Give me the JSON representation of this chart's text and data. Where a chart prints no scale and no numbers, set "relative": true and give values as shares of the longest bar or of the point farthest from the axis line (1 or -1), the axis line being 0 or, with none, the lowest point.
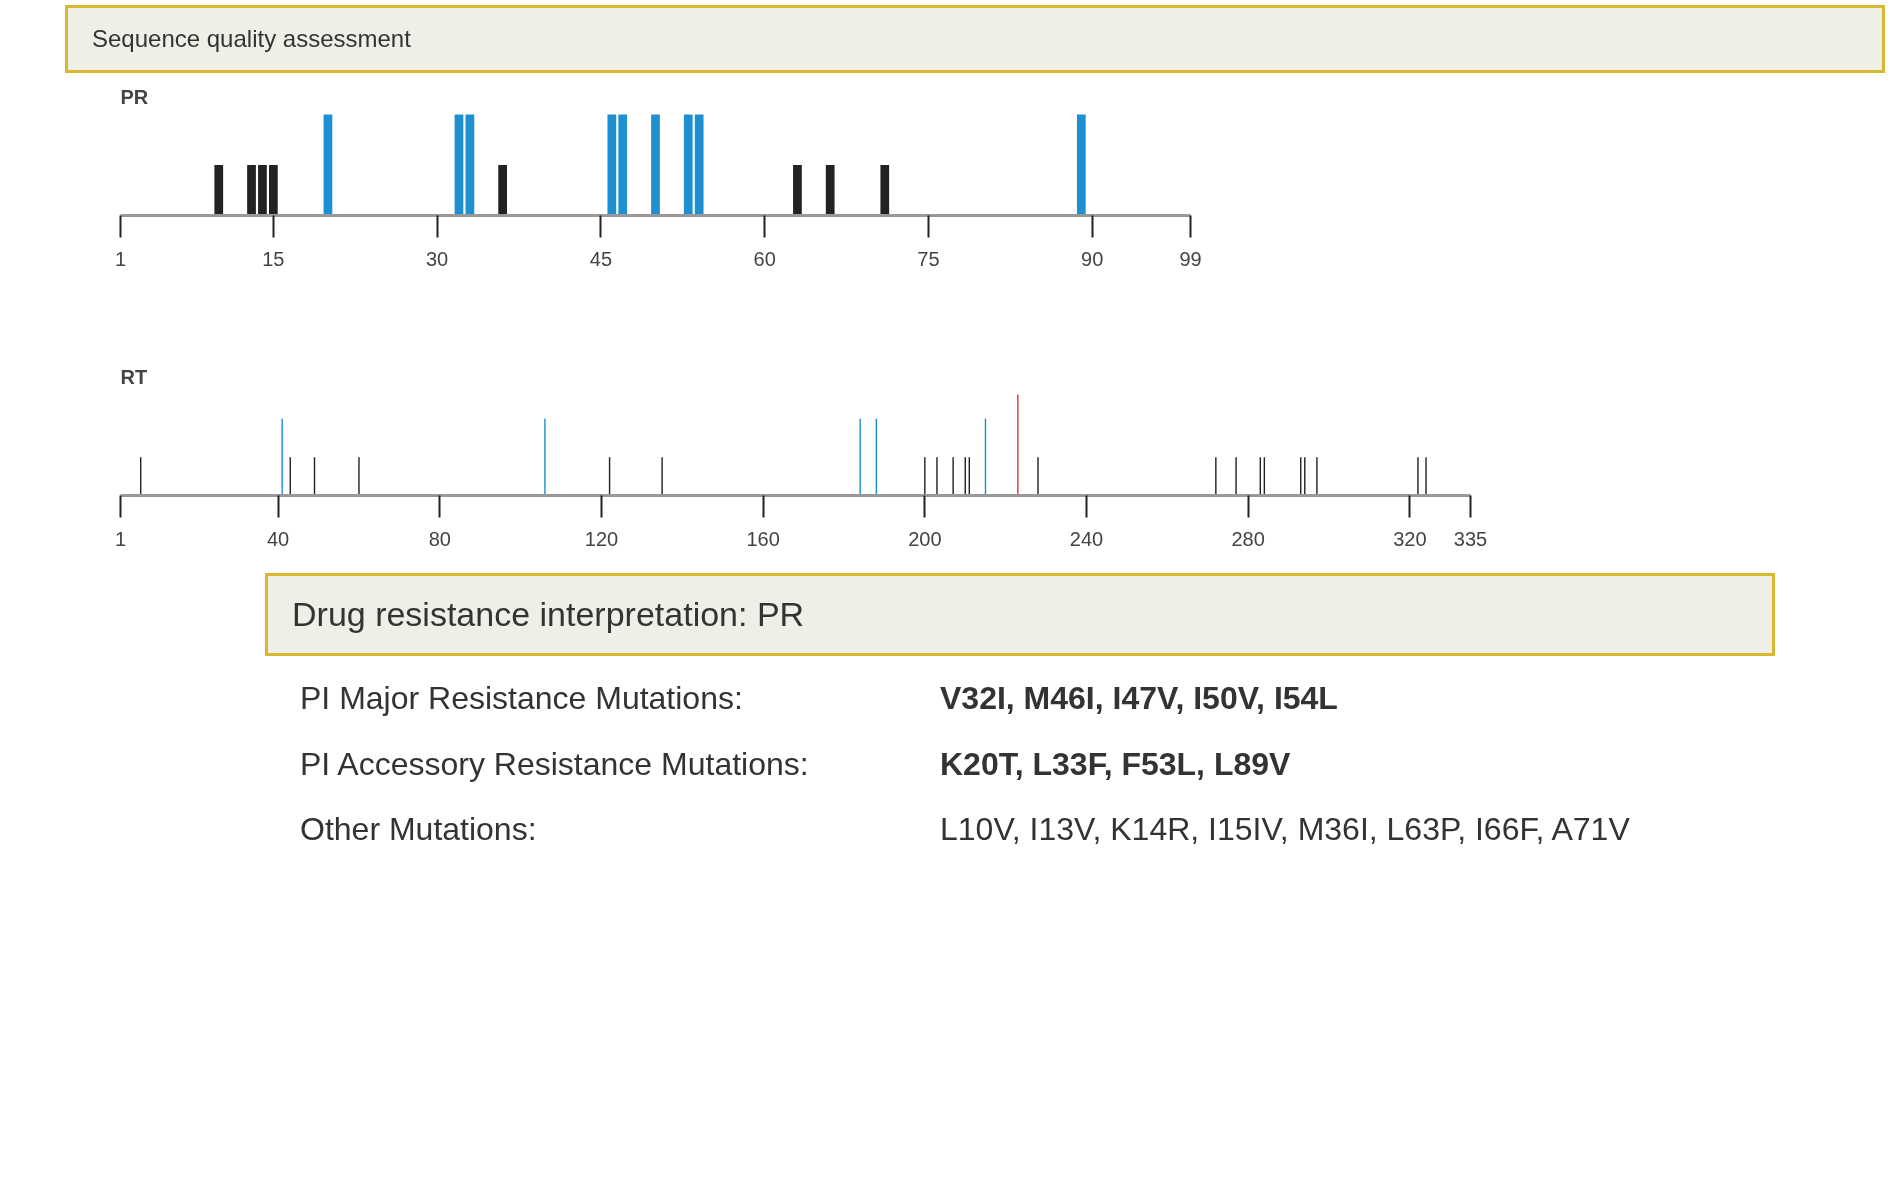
{
  "chart_data": [
    {
      "type": "bar",
      "title": "PR",
      "annotations": [
        "Sequence quality assessment"
      ],
      "relative": true,
      "grid": false,
      "xlim": [
        1,
        99
      ],
      "xticks": [
        1,
        15,
        30,
        45,
        60,
        75,
        90,
        99
      ],
      "x": [
        10,
        13,
        14,
        15,
        20,
        32,
        33,
        36,
        46,
        47,
        50,
        53,
        54,
        63,
        66,
        71,
        89
      ],
      "values": [
        0.5,
        0.5,
        0.5,
        0.5,
        1,
        1,
        1,
        0.5,
        1,
        1,
        1,
        1,
        1,
        0.5,
        0.5,
        0.5,
        1
      ],
      "colors": [
        "#222222",
        "#222222",
        "#222222",
        "#222222",
        "#1e8fd0",
        "#1e8fd0",
        "#1e8fd0",
        "#222222",
        "#1e8fd0",
        "#1e8fd0",
        "#1e8fd0",
        "#1e8fd0",
        "#1e8fd0",
        "#222222",
        "#222222",
        "#222222",
        "#1e8fd0"
      ]
    },
    {
      "type": "bar",
      "title": "RT",
      "annotations": [
        "Drug resistance interpretation: PR",
        "PI Major Resistance Mutations:",
        "V32I, M46I, I47V, I50V, I54L",
        "PI Accessory Resistance Mutations:",
        "K20T, L33F, F53L, L89V",
        "Other Mutations:",
        "L10V, I13V, K14R, I15IV, M36I, L63P, I66F, A71V"
      ],
      "relative": true,
      "grid": false,
      "xlim": [
        1,
        335
      ],
      "xticks": [
        1,
        40,
        80,
        120,
        160,
        200,
        240,
        280,
        320,
        335
      ],
      "x": [
        6,
        41,
        43,
        49,
        60,
        106,
        122,
        135,
        184,
        188,
        200,
        203,
        207,
        210,
        211,
        215,
        223,
        228,
        272,
        277,
        283,
        284,
        293,
        294,
        297,
        322,
        324
      ],
      "values": [
        0.38,
        0.76,
        0.38,
        0.38,
        0.38,
        0.76,
        0.38,
        0.38,
        0.76,
        0.76,
        0.38,
        0.38,
        0.38,
        0.38,
        0.38,
        0.76,
        1,
        0.38,
        0.38,
        0.38,
        0.38,
        0.38,
        0.38,
        0.38,
        0.38,
        0.38,
        0.38
      ],
      "colors": [
        "#222222",
        "#1e8fd0",
        "#222222",
        "#222222",
        "#222222",
        "#1e8fd0",
        "#222222",
        "#222222",
        "#1e8fd0",
        "#1e8fd0",
        "#222222",
        "#222222",
        "#222222",
        "#222222",
        "#222222",
        "#1e8fd0",
        "#e8323a",
        "#222222",
        "#222222",
        "#222222",
        "#222222",
        "#222222",
        "#222222",
        "#222222",
        "#222222",
        "#222222",
        "#222222"
      ]
    }
  ]
}
